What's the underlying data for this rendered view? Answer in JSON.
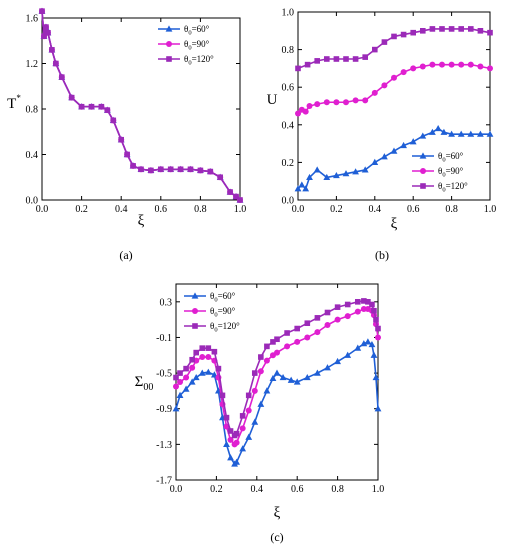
{
  "chart_data": [
    {
      "id": "a",
      "type": "line",
      "panel_label": "(a)",
      "xlabel": "ξ",
      "ylabel": "T",
      "ylabel_sup": "*",
      "xlim": [
        0,
        1
      ],
      "ylim": [
        0,
        1.6
      ],
      "xticks": [
        0.0,
        0.2,
        0.4,
        0.6,
        0.8,
        1.0
      ],
      "yticks": [
        0.0,
        0.4,
        0.8,
        1.2,
        1.6
      ],
      "legend_position": "top-right",
      "series": [
        {
          "name": "θ",
          "name_sub": "0",
          "name_value": "=60°",
          "color": "#1f5fd6",
          "marker": "triangle",
          "x": [
            0.0,
            0.01,
            0.02,
            0.03,
            0.05,
            0.07,
            0.1,
            0.15,
            0.2,
            0.25,
            0.3,
            0.33,
            0.36,
            0.4,
            0.43,
            0.46,
            0.5,
            0.55,
            0.6,
            0.65,
            0.7,
            0.75,
            0.8,
            0.85,
            0.9,
            0.95,
            0.98,
            1.0
          ],
          "y": [
            1.66,
            1.44,
            1.52,
            1.47,
            1.32,
            1.2,
            1.08,
            0.9,
            0.82,
            0.82,
            0.82,
            0.79,
            0.7,
            0.53,
            0.4,
            0.3,
            0.27,
            0.26,
            0.27,
            0.27,
            0.27,
            0.27,
            0.26,
            0.25,
            0.2,
            0.07,
            0.03,
            0.0
          ]
        },
        {
          "name": "θ",
          "name_sub": "0",
          "name_value": "=90°",
          "color": "#e01fd0",
          "marker": "circle",
          "x": [
            0.0,
            0.01,
            0.02,
            0.03,
            0.05,
            0.07,
            0.1,
            0.15,
            0.2,
            0.25,
            0.3,
            0.33,
            0.36,
            0.4,
            0.43,
            0.46,
            0.5,
            0.55,
            0.6,
            0.65,
            0.7,
            0.75,
            0.8,
            0.85,
            0.9,
            0.95,
            0.98,
            1.0
          ],
          "y": [
            1.66,
            1.44,
            1.52,
            1.47,
            1.32,
            1.2,
            1.08,
            0.9,
            0.82,
            0.82,
            0.82,
            0.79,
            0.7,
            0.53,
            0.4,
            0.3,
            0.27,
            0.26,
            0.27,
            0.27,
            0.27,
            0.27,
            0.26,
            0.25,
            0.2,
            0.07,
            0.03,
            0.0
          ]
        },
        {
          "name": "θ",
          "name_sub": "0",
          "name_value": "=120°",
          "color": "#9b2ab8",
          "marker": "square",
          "x": [
            0.0,
            0.01,
            0.02,
            0.03,
            0.05,
            0.07,
            0.1,
            0.15,
            0.2,
            0.25,
            0.3,
            0.33,
            0.36,
            0.4,
            0.43,
            0.46,
            0.5,
            0.55,
            0.6,
            0.65,
            0.7,
            0.75,
            0.8,
            0.85,
            0.9,
            0.95,
            0.98,
            1.0
          ],
          "y": [
            1.66,
            1.44,
            1.52,
            1.47,
            1.32,
            1.2,
            1.08,
            0.9,
            0.82,
            0.82,
            0.82,
            0.79,
            0.7,
            0.53,
            0.4,
            0.3,
            0.27,
            0.26,
            0.27,
            0.27,
            0.27,
            0.27,
            0.26,
            0.25,
            0.2,
            0.07,
            0.03,
            0.0
          ]
        }
      ]
    },
    {
      "id": "b",
      "type": "line",
      "panel_label": "(b)",
      "xlabel": "ξ",
      "ylabel": "U",
      "ylabel_sup": "",
      "xlim": [
        0,
        1
      ],
      "ylim": [
        0,
        1.0
      ],
      "xticks": [
        0.0,
        0.2,
        0.4,
        0.6,
        0.8,
        1.0
      ],
      "yticks": [
        0.0,
        0.2,
        0.4,
        0.6,
        0.8,
        1.0
      ],
      "legend_position": "bottom-right",
      "series": [
        {
          "name": "θ",
          "name_sub": "0",
          "name_value": "=60°",
          "color": "#1f5fd6",
          "marker": "triangle",
          "x": [
            0.0,
            0.02,
            0.04,
            0.06,
            0.1,
            0.15,
            0.2,
            0.25,
            0.3,
            0.35,
            0.4,
            0.45,
            0.5,
            0.55,
            0.6,
            0.65,
            0.7,
            0.73,
            0.76,
            0.8,
            0.85,
            0.9,
            0.95,
            1.0
          ],
          "y": [
            0.06,
            0.08,
            0.06,
            0.12,
            0.16,
            0.12,
            0.13,
            0.14,
            0.15,
            0.16,
            0.2,
            0.23,
            0.26,
            0.29,
            0.31,
            0.34,
            0.36,
            0.38,
            0.36,
            0.35,
            0.35,
            0.35,
            0.35,
            0.35
          ]
        },
        {
          "name": "θ",
          "name_sub": "0",
          "name_value": "=90°",
          "color": "#e01fd0",
          "marker": "circle",
          "x": [
            0.0,
            0.02,
            0.04,
            0.06,
            0.1,
            0.15,
            0.2,
            0.25,
            0.3,
            0.35,
            0.4,
            0.45,
            0.5,
            0.55,
            0.6,
            0.65,
            0.7,
            0.75,
            0.8,
            0.85,
            0.9,
            0.95,
            1.0
          ],
          "y": [
            0.46,
            0.48,
            0.47,
            0.5,
            0.51,
            0.52,
            0.52,
            0.52,
            0.53,
            0.53,
            0.57,
            0.61,
            0.65,
            0.68,
            0.7,
            0.71,
            0.72,
            0.72,
            0.72,
            0.72,
            0.72,
            0.71,
            0.7
          ]
        },
        {
          "name": "θ",
          "name_sub": "0",
          "name_value": "=120°",
          "color": "#9b2ab8",
          "marker": "square",
          "x": [
            0.0,
            0.05,
            0.1,
            0.15,
            0.2,
            0.25,
            0.3,
            0.35,
            0.4,
            0.45,
            0.5,
            0.55,
            0.6,
            0.65,
            0.7,
            0.75,
            0.8,
            0.85,
            0.9,
            0.95,
            1.0
          ],
          "y": [
            0.7,
            0.72,
            0.74,
            0.75,
            0.75,
            0.75,
            0.75,
            0.76,
            0.8,
            0.84,
            0.87,
            0.88,
            0.89,
            0.9,
            0.91,
            0.91,
            0.91,
            0.91,
            0.91,
            0.9,
            0.89
          ]
        }
      ]
    },
    {
      "id": "c",
      "type": "line",
      "panel_label": "(c)",
      "xlabel": "ξ",
      "ylabel": "Σ",
      "ylabel_sub": "00",
      "xlim": [
        0,
        1
      ],
      "ylim": [
        -1.7,
        0.5
      ],
      "xticks": [
        0.0,
        0.2,
        0.4,
        0.6,
        0.8,
        1.0
      ],
      "yticks": [
        -1.7,
        -1.3,
        -0.9,
        -0.5,
        -0.1,
        0.3
      ],
      "legend_position": "top-left",
      "series": [
        {
          "name": "θ",
          "name_sub": "0",
          "name_value": "=60°",
          "color": "#1f5fd6",
          "marker": "triangle",
          "x": [
            0.0,
            0.02,
            0.05,
            0.08,
            0.1,
            0.13,
            0.16,
            0.19,
            0.21,
            0.23,
            0.25,
            0.27,
            0.29,
            0.3,
            0.33,
            0.36,
            0.39,
            0.42,
            0.45,
            0.48,
            0.5,
            0.53,
            0.57,
            0.6,
            0.65,
            0.7,
            0.75,
            0.8,
            0.85,
            0.9,
            0.93,
            0.95,
            0.97,
            0.98,
            0.99,
            1.0
          ],
          "y": [
            -0.9,
            -0.75,
            -0.68,
            -0.6,
            -0.55,
            -0.5,
            -0.49,
            -0.52,
            -0.7,
            -1.0,
            -1.3,
            -1.45,
            -1.52,
            -1.5,
            -1.35,
            -1.22,
            -1.05,
            -0.85,
            -0.7,
            -0.56,
            -0.5,
            -0.55,
            -0.58,
            -0.6,
            -0.55,
            -0.5,
            -0.44,
            -0.37,
            -0.3,
            -0.22,
            -0.17,
            -0.15,
            -0.18,
            -0.3,
            -0.55,
            -0.9
          ]
        },
        {
          "name": "θ",
          "name_sub": "0",
          "name_value": "=90°",
          "color": "#e01fd0",
          "marker": "circle",
          "x": [
            0.0,
            0.02,
            0.05,
            0.08,
            0.1,
            0.13,
            0.16,
            0.19,
            0.21,
            0.23,
            0.25,
            0.27,
            0.29,
            0.3,
            0.33,
            0.36,
            0.39,
            0.42,
            0.45,
            0.48,
            0.5,
            0.55,
            0.6,
            0.65,
            0.7,
            0.75,
            0.8,
            0.85,
            0.9,
            0.93,
            0.95,
            0.97,
            0.98,
            0.99,
            1.0
          ],
          "y": [
            -0.65,
            -0.6,
            -0.55,
            -0.44,
            -0.36,
            -0.32,
            -0.32,
            -0.36,
            -0.55,
            -0.85,
            -1.1,
            -1.25,
            -1.3,
            -1.28,
            -1.12,
            -0.92,
            -0.7,
            -0.48,
            -0.36,
            -0.3,
            -0.27,
            -0.2,
            -0.15,
            -0.1,
            -0.04,
            0.04,
            0.1,
            0.14,
            0.19,
            0.22,
            0.22,
            0.2,
            0.15,
            0.05,
            -0.1
          ]
        },
        {
          "name": "θ",
          "name_sub": "0",
          "name_value": "=120°",
          "color": "#9b2ab8",
          "marker": "square",
          "x": [
            0.0,
            0.02,
            0.05,
            0.08,
            0.1,
            0.13,
            0.16,
            0.19,
            0.21,
            0.23,
            0.25,
            0.27,
            0.29,
            0.3,
            0.33,
            0.36,
            0.39,
            0.42,
            0.45,
            0.48,
            0.5,
            0.55,
            0.6,
            0.65,
            0.7,
            0.75,
            0.8,
            0.85,
            0.9,
            0.93,
            0.95,
            0.97,
            0.98,
            0.99,
            1.0
          ],
          "y": [
            -0.55,
            -0.5,
            -0.45,
            -0.35,
            -0.27,
            -0.22,
            -0.22,
            -0.26,
            -0.45,
            -0.75,
            -1.0,
            -1.15,
            -1.2,
            -1.18,
            -0.98,
            -0.75,
            -0.5,
            -0.32,
            -0.2,
            -0.15,
            -0.12,
            -0.05,
            0.0,
            0.06,
            0.12,
            0.18,
            0.24,
            0.27,
            0.3,
            0.31,
            0.3,
            0.27,
            0.2,
            0.1,
            0.0
          ]
        }
      ]
    }
  ]
}
